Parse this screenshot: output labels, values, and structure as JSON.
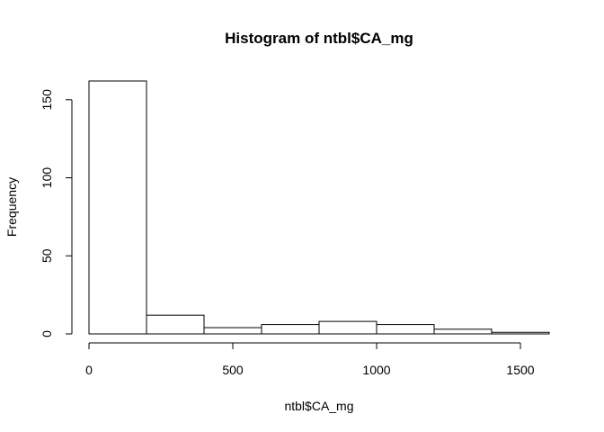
{
  "chart_data": {
    "type": "bar",
    "title": "Histogram of ntbl$CA_mg",
    "xlabel": "ntbl$CA_mg",
    "ylabel": "Frequency",
    "bins": [
      {
        "start": 0,
        "end": 200,
        "count": 162
      },
      {
        "start": 200,
        "end": 400,
        "count": 12
      },
      {
        "start": 400,
        "end": 600,
        "count": 4
      },
      {
        "start": 600,
        "end": 800,
        "count": 6
      },
      {
        "start": 800,
        "end": 1000,
        "count": 8
      },
      {
        "start": 1000,
        "end": 1200,
        "count": 6
      },
      {
        "start": 1200,
        "end": 1400,
        "count": 3
      },
      {
        "start": 1400,
        "end": 1600,
        "count": 1
      }
    ],
    "xlim": [
      0,
      1600
    ],
    "ylim": [
      0,
      162
    ],
    "x_ticks": [
      0,
      500,
      1000,
      1500
    ],
    "y_ticks": [
      0,
      50,
      100,
      150
    ],
    "grid": false,
    "bar_fill": "#ffffff",
    "bar_stroke": "#000000"
  }
}
